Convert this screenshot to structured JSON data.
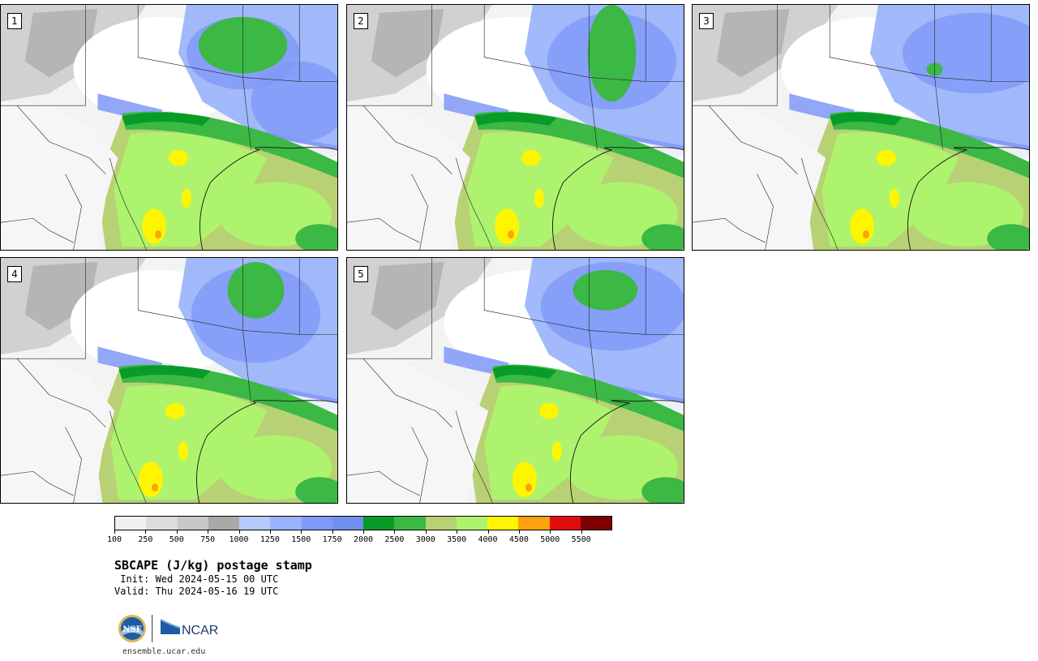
{
  "panels": [
    {
      "label": "1"
    },
    {
      "label": "2"
    },
    {
      "label": "3"
    },
    {
      "label": "4"
    },
    {
      "label": "5"
    }
  ],
  "colorbar": {
    "colors": [
      "#f0f0f0",
      "#dcdcdc",
      "#c8c8c8",
      "#a9a9a9",
      "#b7c9fb",
      "#98b2fb",
      "#8098f8",
      "#7090f0",
      "#089b28",
      "#3cb844",
      "#b8d174",
      "#aef36e",
      "#fff500",
      "#fba20c",
      "#e20c0c",
      "#7e0000"
    ],
    "tick_labels": [
      "100",
      "250",
      "500",
      "750",
      "1000",
      "1250",
      "1500",
      "1750",
      "2000",
      "2500",
      "3000",
      "3500",
      "4000",
      "4500",
      "5000",
      "5500"
    ]
  },
  "title": "SBCAPE (J/kg) postage stamp",
  "init": " Init: Wed 2024-05-15 00 UTC",
  "valid": "Valid: Thu 2024-05-16 19 UTC",
  "footer": {
    "nsf_logo_text": "NSF",
    "ncar_logo_text": "NCAR",
    "site": "ensemble.ucar.edu"
  }
}
